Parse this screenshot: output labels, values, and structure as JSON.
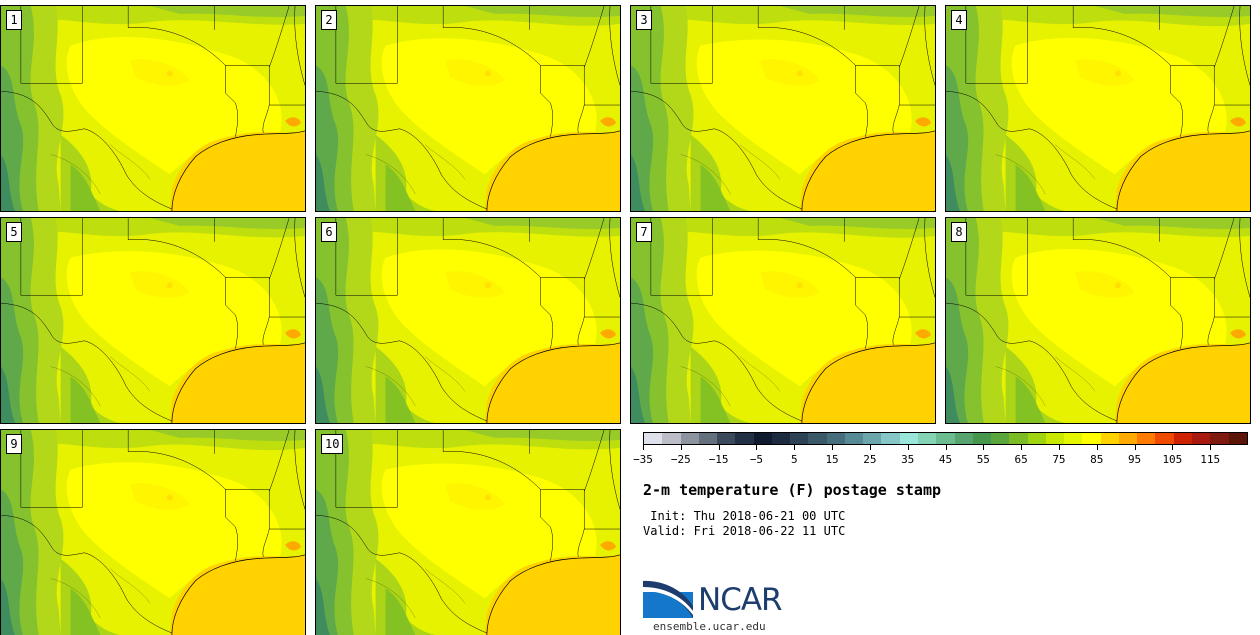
{
  "stamps": [
    {
      "label": "1"
    },
    {
      "label": "2"
    },
    {
      "label": "3"
    },
    {
      "label": "4"
    },
    {
      "label": "5"
    },
    {
      "label": "6"
    },
    {
      "label": "7"
    },
    {
      "label": "8"
    },
    {
      "label": "9"
    },
    {
      "label": "10"
    }
  ],
  "legend": {
    "colors": [
      "#dfe1ea",
      "#bcbdc6",
      "#8e93a0",
      "#65707f",
      "#3a4a5c",
      "#223046",
      "#0f1a2e",
      "#1d2b40",
      "#2d4354",
      "#3a5868",
      "#466e7c",
      "#568b95",
      "#6ba6ad",
      "#86c6c6",
      "#9be6da",
      "#85d3b4",
      "#6dbc8f",
      "#57a46f",
      "#46964e",
      "#5aa53c",
      "#7bbb26",
      "#a1d410",
      "#c9e800",
      "#e4f500",
      "#ffff00",
      "#ffd200",
      "#ffaa00",
      "#ff7a00",
      "#f04a00",
      "#cc2200",
      "#a81a10",
      "#7f1a10",
      "#5c1408"
    ],
    "tick_labels": [
      "−35",
      "−25",
      "−15",
      "−5",
      "5",
      "15",
      "25",
      "35",
      "45",
      "55",
      "65",
      "75",
      "85",
      "95",
      "105",
      "115"
    ],
    "range": [
      -35,
      125
    ]
  },
  "title": "2-m temperature (F) postage stamp",
  "init": " Init: Thu 2018-06-21 00 UTC",
  "valid": "Valid: Fri 2018-06-22 11 UTC",
  "logo": {
    "wordmark": "NCAR",
    "url": "ensemble.ucar.edu"
  }
}
